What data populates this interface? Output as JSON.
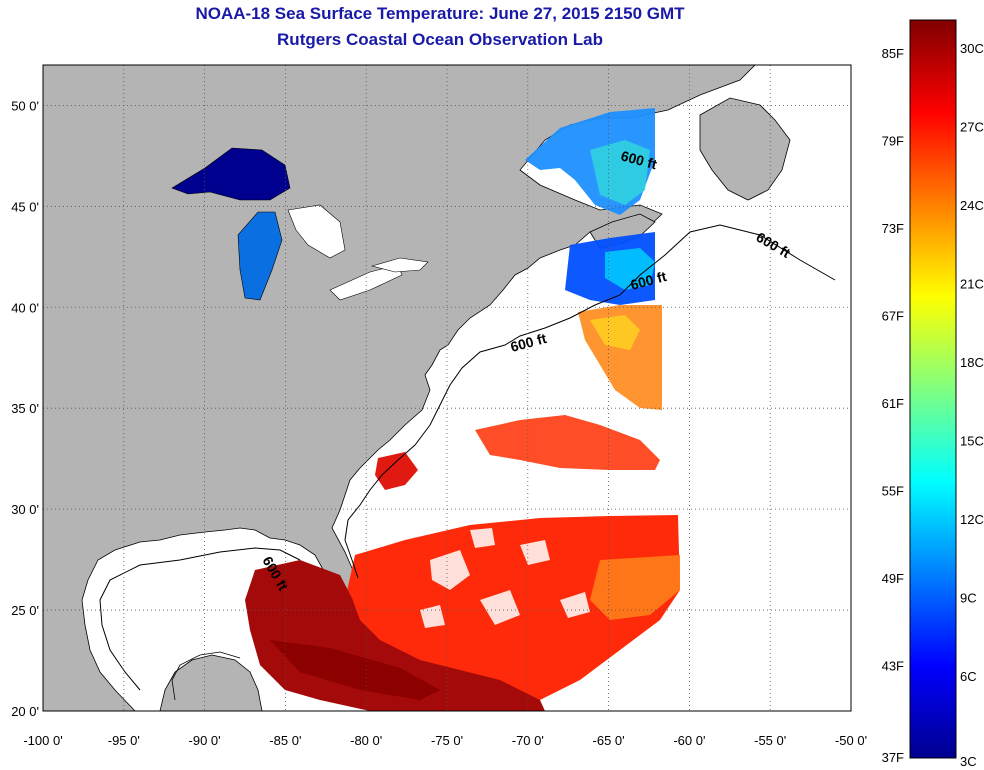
{
  "title": "NOAA-18 Sea Surface Temperature:  June 27, 2015 2150 GMT",
  "subtitle": "Rutgers Coastal Ocean Observation Lab",
  "map": {
    "lon_range": [
      -100,
      -50
    ],
    "lat_range": [
      20,
      52
    ],
    "lon_ticks": [
      {
        "value": -100,
        "label": "-100 0'"
      },
      {
        "value": -95,
        "label": "-95 0'"
      },
      {
        "value": -90,
        "label": "-90 0'"
      },
      {
        "value": -85,
        "label": "-85 0'"
      },
      {
        "value": -80,
        "label": "-80 0'"
      },
      {
        "value": -75,
        "label": "-75 0'"
      },
      {
        "value": -70,
        "label": "-70 0'"
      },
      {
        "value": -65,
        "label": "-65 0'"
      },
      {
        "value": -60,
        "label": "-60 0'"
      },
      {
        "value": -55,
        "label": "-55 0'"
      },
      {
        "value": -50,
        "label": "-50 0'"
      }
    ],
    "lat_ticks": [
      {
        "value": 50,
        "label": "50 0'"
      },
      {
        "value": 45,
        "label": "45 0'"
      },
      {
        "value": 40,
        "label": "40 0'"
      },
      {
        "value": 35,
        "label": "35 0'"
      },
      {
        "value": 30,
        "label": "30 0'"
      },
      {
        "value": 25,
        "label": "25 0'"
      },
      {
        "value": 20,
        "label": "20 0'"
      }
    ],
    "contour_label": "600 ft",
    "colors": {
      "land": "#b4b4b4",
      "ocean_nodata": "#ffffff",
      "grid": "#555555"
    }
  },
  "colorbar": {
    "colors": [
      "#00008f",
      "#0000ff",
      "#0080ff",
      "#00ffff",
      "#80ff80",
      "#ffff00",
      "#ff8000",
      "#ff0000",
      "#800000"
    ],
    "fahrenheit_labels": [
      "85F",
      "79F",
      "73F",
      "67F",
      "61F",
      "55F",
      "49F",
      "43F",
      "37F"
    ],
    "celsius_labels": [
      "30C",
      "27C",
      "24C",
      "21C",
      "18C",
      "15C",
      "12C",
      "9C",
      "6C",
      "3C"
    ]
  }
}
